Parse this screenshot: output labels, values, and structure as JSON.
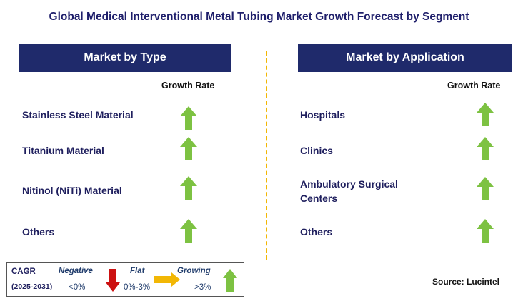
{
  "title": "Global Medical Interventional Metal Tubing Market Growth Forecast by Segment",
  "left_panel": {
    "header": "Market by Type",
    "growth_label": "Growth Rate",
    "items": [
      {
        "label": "Stainless Steel Material",
        "trend": "growing"
      },
      {
        "label": "Titanium Material",
        "trend": "growing"
      },
      {
        "label": "Nitinol (NiTi) Material",
        "trend": "growing"
      },
      {
        "label": "Others",
        "trend": "growing"
      }
    ]
  },
  "right_panel": {
    "header": "Market by Application",
    "growth_label": "Growth Rate",
    "items": [
      {
        "label_line1": "Hospitals",
        "label_line2": "",
        "trend": "growing"
      },
      {
        "label_line1": "Clinics",
        "label_line2": "",
        "trend": "growing"
      },
      {
        "label_line1": "Ambulatory Surgical",
        "label_line2": "Centers",
        "trend": "growing"
      },
      {
        "label_line1": "Others",
        "label_line2": "",
        "trend": "growing"
      }
    ]
  },
  "legend": {
    "cagr_label": "CAGR",
    "years": "(2025-2031)",
    "negative": {
      "label": "Negative",
      "range": "<0%"
    },
    "flat": {
      "label": "Flat",
      "range": "0%-3%"
    },
    "growing": {
      "label": "Growing",
      "range": ">3%"
    }
  },
  "source": "Source: Lucintel",
  "colors": {
    "header_bg": "#1f2a6b",
    "arrow_green": "#7dc242",
    "arrow_red": "#cc1111",
    "arrow_orange": "#f2b705",
    "divider": "#f2b705"
  }
}
